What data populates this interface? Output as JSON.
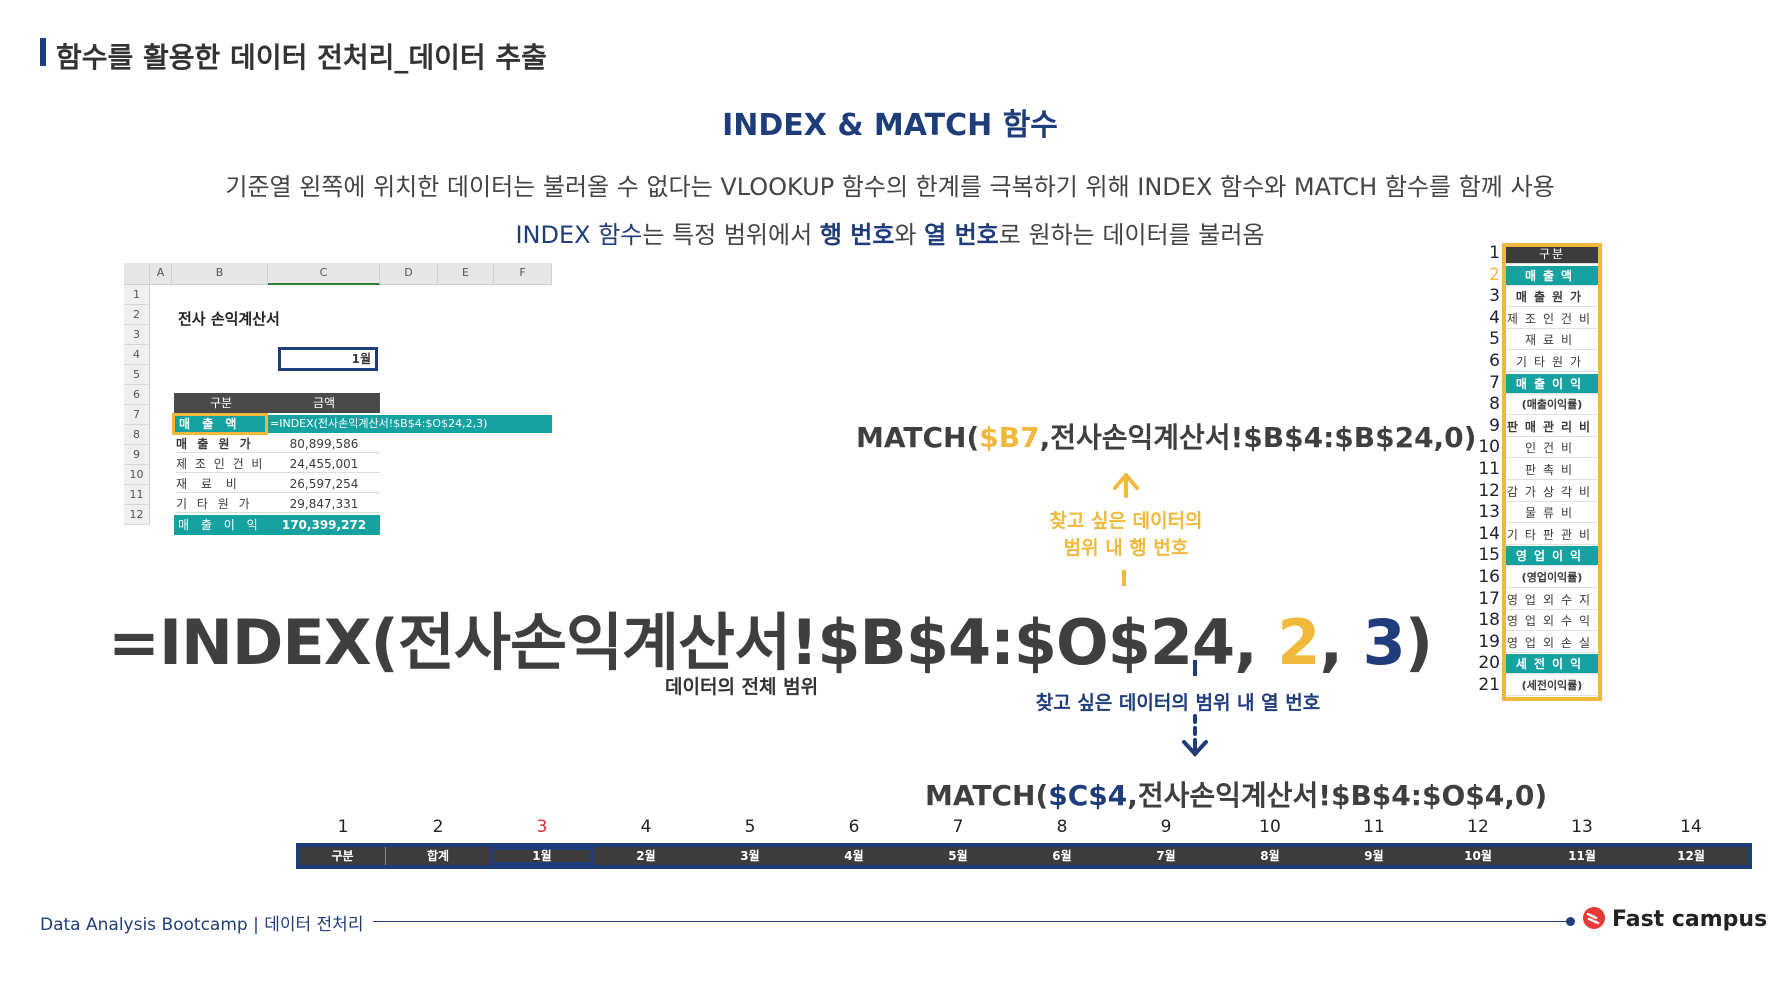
{
  "header": {
    "title": "함수를 활용한 데이터 전처리_데이터 추출"
  },
  "slide": {
    "subtitle": "INDEX & MATCH 함수",
    "desc1": "기준열 왼쪽에 위치한 데이터는 불러올 수 없다는 VLOOKUP 함수의 한계를 극복하기 위해 INDEX 함수와 MATCH 함수를 함께 사용",
    "desc2": {
      "p1": "INDEX 함수",
      "p2": "는 특정 범위에서 ",
      "p3": "행 번호",
      "p4": "와 ",
      "p5": "열 번호",
      "p6": "로 원하는 데이터를 불러옴"
    }
  },
  "excel": {
    "col_headers": [
      "",
      "A",
      "B",
      "C",
      "D",
      "E",
      "F"
    ],
    "row_numbers": [
      "1",
      "2",
      "3",
      "4",
      "5",
      "6",
      "7",
      "8",
      "9",
      "10",
      "11",
      "12"
    ],
    "sheet_title": "전사 손익계산서",
    "month_cell": "1월",
    "table_headers": [
      "구분",
      "금액"
    ],
    "rows": [
      {
        "label": "매 출 액",
        "value": "=INDEX(전사손익계산서!$B$4:$O$24,2,3)"
      },
      {
        "label": "매 출 원 가",
        "value": "80,899,586"
      },
      {
        "label": "제 조 인 건 비",
        "value": "24,455,001"
      },
      {
        "label": "재 료 비",
        "value": "26,597,254"
      },
      {
        "label": "기 타 원 가",
        "value": "29,847,331"
      },
      {
        "label": "매 출 이 익",
        "value": "170,399,272"
      }
    ]
  },
  "formula": {
    "p1": "=INDEX(전사손익계산서!$B$4:$O$24, ",
    "row": "2",
    "sep": ", ",
    "col": "3",
    "end": ")"
  },
  "range_note": "데이터의 전체 범위",
  "match_row": {
    "p1": "MATCH(",
    "ref": "$B7",
    "p2": ",전사손익계산서!$B$4:$B$24,0)"
  },
  "match_col": {
    "p1": "MATCH(",
    "ref": "$C$4",
    "p2": ",전사손익계산서!$B$4:$O$4,0)"
  },
  "row_note": {
    "line1": "찾고 싶은 데이터의",
    "line2": "범위 내 행 번호"
  },
  "col_note": "찾고 싶은 데이터의 범위 내 열 번호",
  "row_list": {
    "numbers": [
      "1",
      "2",
      "3",
      "4",
      "5",
      "6",
      "7",
      "8",
      "9",
      "10",
      "11",
      "12",
      "13",
      "14",
      "15",
      "16",
      "17",
      "18",
      "19",
      "20",
      "21"
    ],
    "items": [
      "구분",
      "매출액",
      "매출원가",
      "제조인건비",
      "재료비",
      "기타원가",
      "매출이익",
      "(매출이익률)",
      "판매관리비",
      "인건비",
      "판촉비",
      "감가상각비",
      "물류비",
      "기타판관비",
      "영업이익",
      "(영업이익률)",
      "영업외수지",
      "영업외수익",
      "영업외손실",
      "세전이익",
      "(세전이익률)"
    ]
  },
  "col_list": {
    "numbers": [
      "1",
      "2",
      "3",
      "4",
      "5",
      "6",
      "7",
      "8",
      "9",
      "10",
      "11",
      "12",
      "13",
      "14"
    ],
    "items": [
      "구분",
      "합계",
      "1월",
      "2월",
      "3월",
      "4월",
      "5월",
      "6월",
      "7월",
      "8월",
      "9월",
      "10월",
      "11월",
      "12월"
    ]
  },
  "footer": {
    "left": "Data Analysis Bootcamp | 데이터 전처리",
    "logo": "Fast campus"
  },
  "colors": {
    "navy": "#1f3d7a",
    "yellow": "#f0b93b",
    "teal": "#17a2a2",
    "dark": "#3c3c3c"
  }
}
